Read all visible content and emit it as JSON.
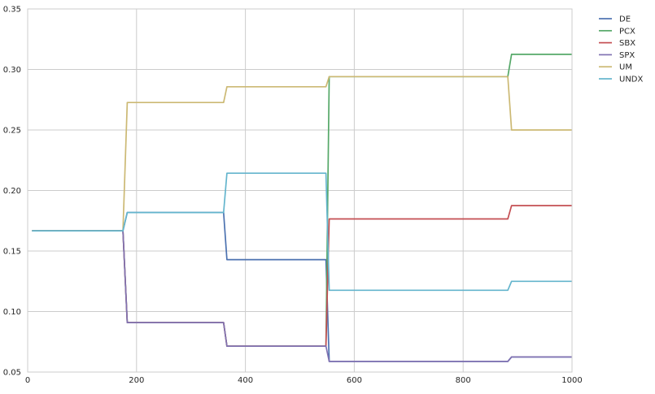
{
  "chart_data": {
    "type": "line",
    "title": "",
    "xlabel": "",
    "ylabel": "",
    "xlim": [
      0,
      1000
    ],
    "ylim": [
      0.05,
      0.35
    ],
    "xticks": [
      0,
      200,
      400,
      600,
      800,
      1000
    ],
    "yticks": [
      0.05,
      0.1,
      0.15,
      0.2,
      0.25,
      0.3,
      0.35
    ],
    "xtick_labels": [
      "0",
      "200",
      "400",
      "600",
      "800",
      "1000"
    ],
    "ytick_labels": [
      "0.05",
      "0.10",
      "0.15",
      "0.20",
      "0.25",
      "0.30",
      "0.35"
    ],
    "grid": true,
    "legend_position": "outside top-right",
    "series": [
      {
        "name": "DE",
        "color": "#4C72B0",
        "points": [
          [
            8,
            0.1667
          ],
          [
            175,
            0.1667
          ],
          [
            183,
            0.1818
          ],
          [
            360,
            0.1818
          ],
          [
            366,
            0.1429
          ],
          [
            548,
            0.1429
          ],
          [
            554,
            0.0588
          ],
          [
            882,
            0.0588
          ],
          [
            889,
            0.0625
          ],
          [
            1000,
            0.0625
          ]
        ]
      },
      {
        "name": "PCX",
        "color": "#55A868",
        "points": [
          [
            8,
            0.1667
          ],
          [
            175,
            0.1667
          ],
          [
            183,
            0.0909
          ],
          [
            360,
            0.0909
          ],
          [
            366,
            0.0714
          ],
          [
            548,
            0.0714
          ],
          [
            554,
            0.2941
          ],
          [
            882,
            0.2941
          ],
          [
            889,
            0.3125
          ],
          [
            1000,
            0.3125
          ]
        ]
      },
      {
        "name": "SBX",
        "color": "#C44E52",
        "points": [
          [
            8,
            0.1667
          ],
          [
            175,
            0.1667
          ],
          [
            183,
            0.0909
          ],
          [
            360,
            0.0909
          ],
          [
            366,
            0.0714
          ],
          [
            548,
            0.0714
          ],
          [
            554,
            0.1765
          ],
          [
            882,
            0.1765
          ],
          [
            889,
            0.1875
          ],
          [
            1000,
            0.1875
          ]
        ]
      },
      {
        "name": "SPX",
        "color": "#8172B2",
        "points": [
          [
            8,
            0.1667
          ],
          [
            175,
            0.1667
          ],
          [
            183,
            0.0909
          ],
          [
            360,
            0.0909
          ],
          [
            366,
            0.0714
          ],
          [
            548,
            0.0714
          ],
          [
            554,
            0.0588
          ],
          [
            882,
            0.0588
          ],
          [
            889,
            0.0625
          ],
          [
            1000,
            0.0625
          ]
        ]
      },
      {
        "name": "UM",
        "color": "#CCB974",
        "points": [
          [
            8,
            0.1667
          ],
          [
            175,
            0.1667
          ],
          [
            183,
            0.2727
          ],
          [
            360,
            0.2727
          ],
          [
            366,
            0.2857
          ],
          [
            548,
            0.2857
          ],
          [
            554,
            0.2941
          ],
          [
            882,
            0.2941
          ],
          [
            889,
            0.25
          ],
          [
            1000,
            0.25
          ]
        ]
      },
      {
        "name": "UNDX",
        "color": "#64B5CD",
        "points": [
          [
            8,
            0.1667
          ],
          [
            175,
            0.1667
          ],
          [
            183,
            0.1818
          ],
          [
            360,
            0.1818
          ],
          [
            366,
            0.2143
          ],
          [
            548,
            0.2143
          ],
          [
            554,
            0.1176
          ],
          [
            882,
            0.1176
          ],
          [
            889,
            0.125
          ],
          [
            1000,
            0.125
          ]
        ]
      }
    ]
  }
}
